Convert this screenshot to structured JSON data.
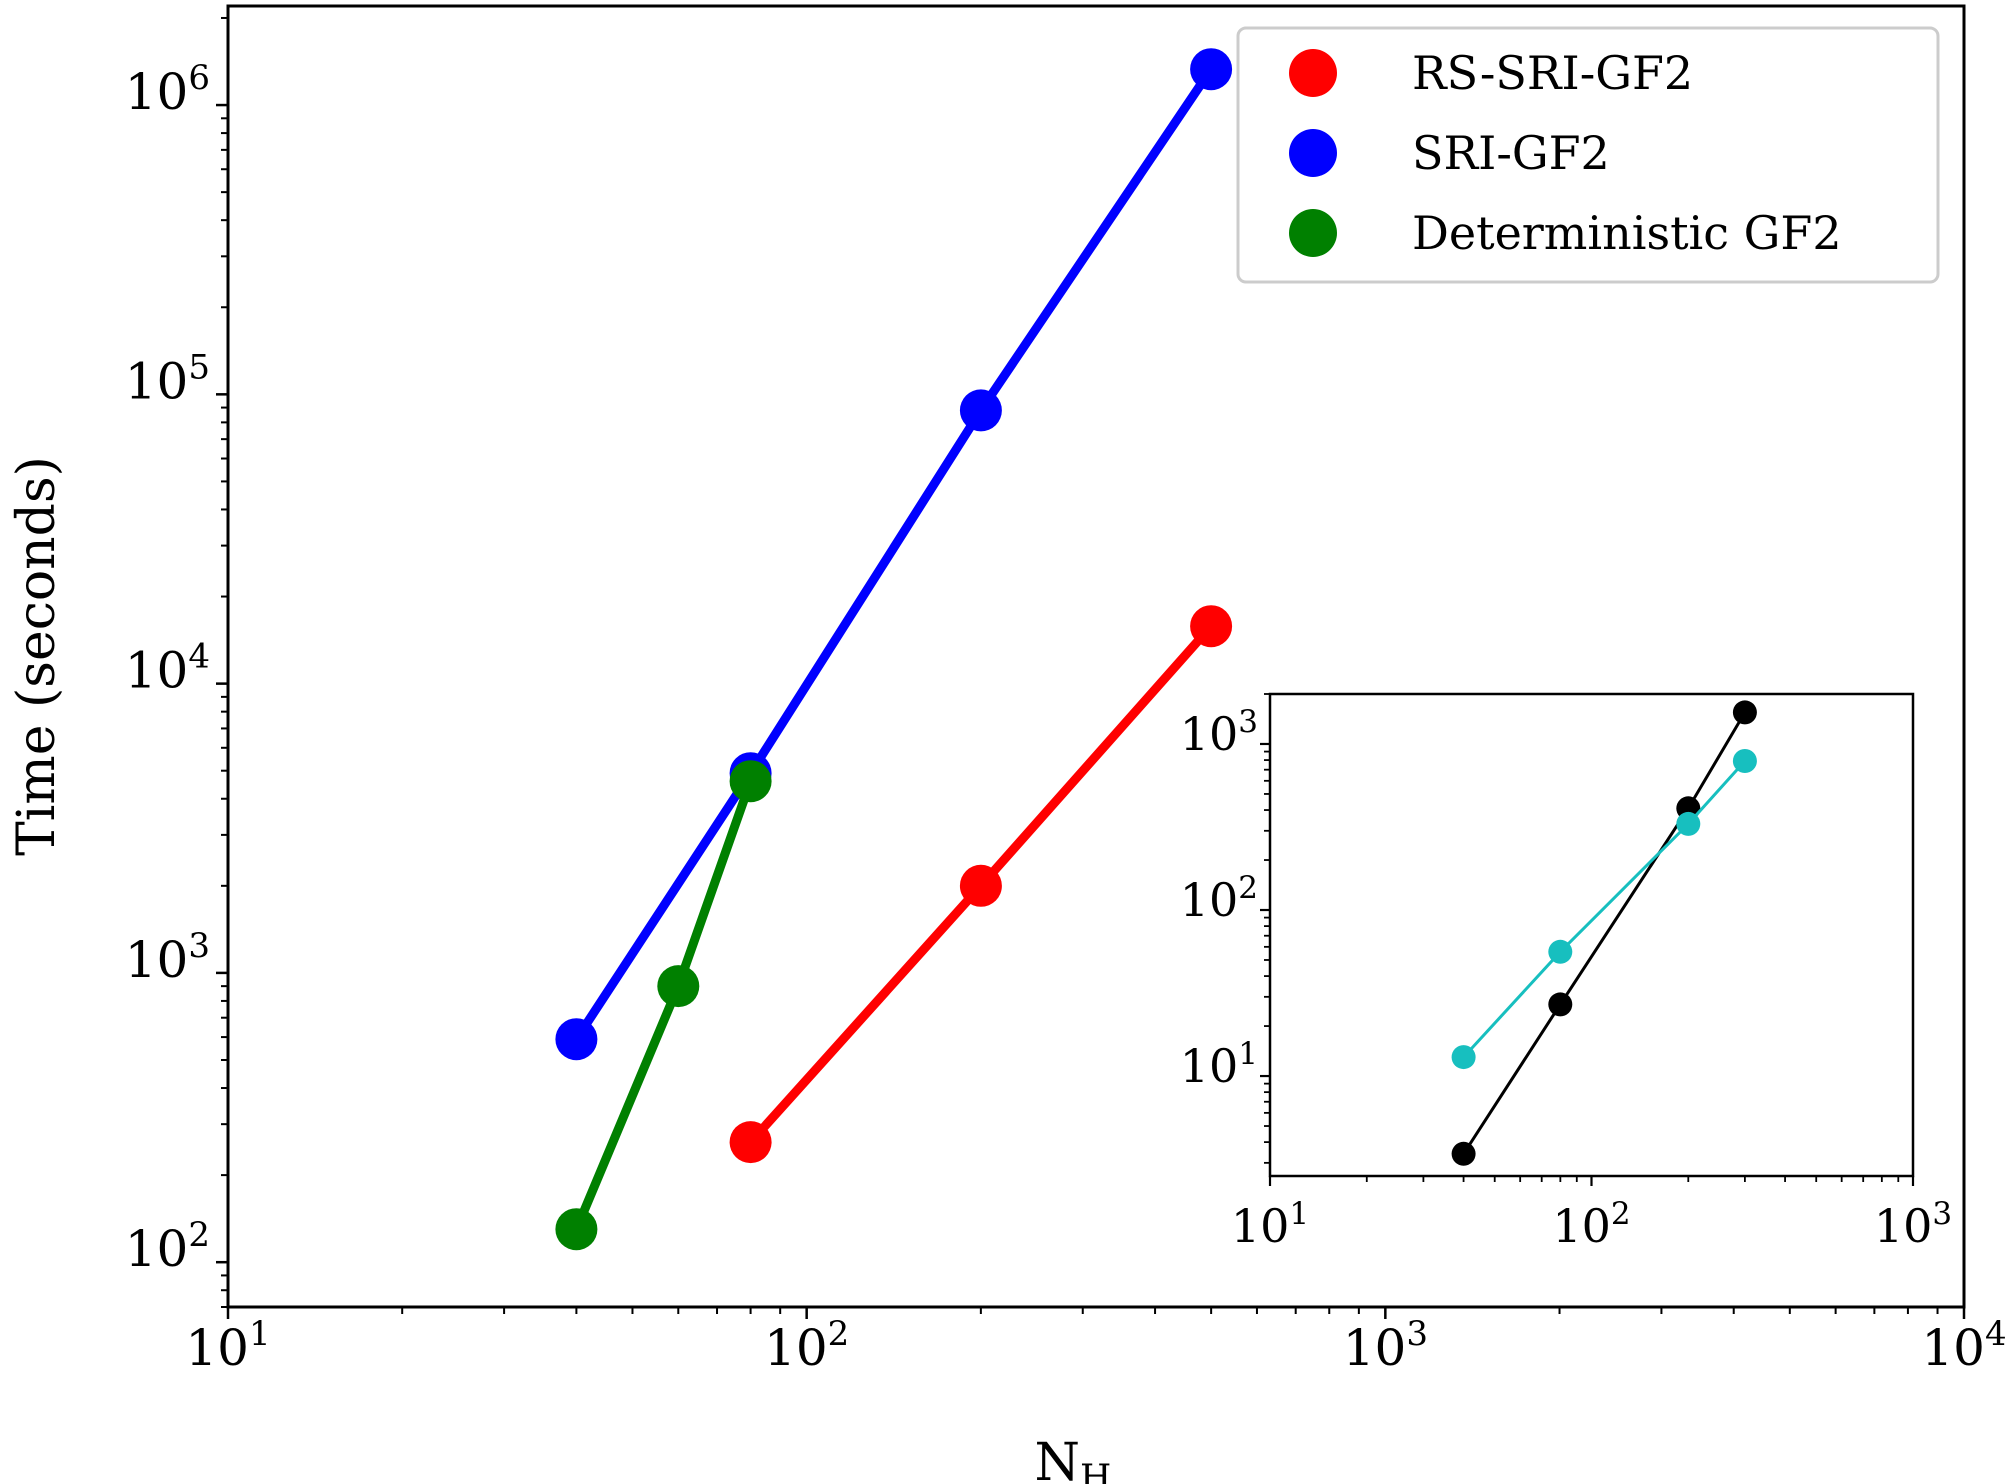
{
  "chart_data": [
    {
      "type": "line",
      "xlabel": "N",
      "xlabel_sub": "H",
      "ylabel": "Time (seconds)",
      "xscale": "log",
      "yscale": "log",
      "xlim": [
        10,
        10000
      ],
      "ylim": [
        70,
        2200000
      ],
      "x_ticks": [
        "10",
        "10",
        "10",
        "10"
      ],
      "x_tick_exponents": [
        "1",
        "2",
        "3",
        "4"
      ],
      "y_ticks": [
        "10",
        "10",
        "10",
        "10",
        "10"
      ],
      "y_tick_exponents": [
        "2",
        "3",
        "4",
        "5",
        "6"
      ],
      "legend": "top-right",
      "grid": false,
      "series": [
        {
          "name": "RS-SRI-GF2",
          "color": "#ff0000",
          "x": [
            80,
            200,
            500
          ],
          "y": [
            260,
            2000,
            15800
          ]
        },
        {
          "name": "SRI-GF2",
          "color": "#0000ff",
          "x": [
            40,
            80,
            200,
            500
          ],
          "y": [
            590,
            4900,
            88000,
            1330000
          ]
        },
        {
          "name": "Deterministic GF2",
          "color": "#008000",
          "x": [
            40,
            60,
            80
          ],
          "y": [
            130,
            900,
            4600
          ]
        }
      ]
    },
    {
      "type": "line",
      "inset": true,
      "xscale": "log",
      "yscale": "log",
      "xlim": [
        10,
        1000
      ],
      "ylim": [
        2.5,
        2000
      ],
      "x_ticks": [
        "10",
        "10",
        "10"
      ],
      "x_tick_exponents": [
        "1",
        "2",
        "3"
      ],
      "y_ticks": [
        "10",
        "10",
        "10"
      ],
      "y_tick_exponents": [
        "1",
        "2",
        "3"
      ],
      "grid": false,
      "series": [
        {
          "color": "#000000",
          "x": [
            40,
            80,
            200,
            300
          ],
          "y": [
            3.4,
            27,
            410,
            1550
          ]
        },
        {
          "color": "#17bfbf",
          "x": [
            40,
            80,
            200,
            300
          ],
          "y": [
            13,
            56,
            330,
            790
          ]
        }
      ]
    }
  ]
}
